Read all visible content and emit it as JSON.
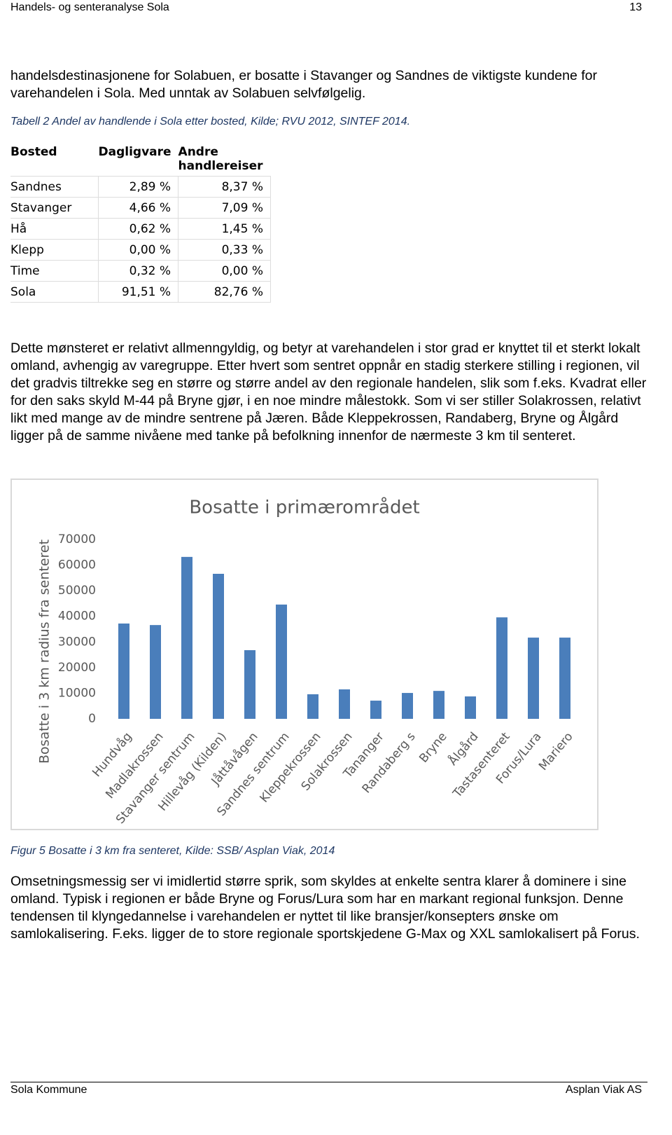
{
  "header": {
    "title": "Handels- og senteranalyse Sola",
    "page": "13"
  },
  "paragraphs": [
    "handelsdestinasjonene for Solabuen, er bosatte i Stavanger og Sandnes de viktigste kundene for varehandelen i Sola. Med unntak av Solabuen selvfølgelig.",
    "Dette mønsteret er relativt allmenngyldig, og betyr at varehandelen i stor grad er knyttet til et sterkt lokalt omland, avhengig av varegruppe. Etter hvert som sentret oppnår en stadig sterkere stilling i regionen, vil det gradvis tiltrekke seg en større og større andel av den regionale handelen, slik som f.eks. Kvadrat eller for den saks skyld M-44 på Bryne gjør, i en noe mindre målestokk. Som vi ser stiller Solakrossen, relativt likt med mange av de mindre sentrene på Jæren. Både Kleppekrossen, Randaberg, Bryne og Ålgård ligger på de samme nivåene med tanke på befolkning innenfor de nærmeste 3 km til senteret.",
    "Omsetningsmessig ser vi imidlertid større sprik, som skyldes at enkelte sentra klarer å dominere i sine omland. Typisk i regionen er både Bryne og Forus/Lura som har en markant regional funksjon. Denne tendensen til klyngedannelse i varehandelen er nyttet til like bransjer/konsepters ønske om samlokalisering. F.eks. ligger de to store regionale sportskjedene G-Max og XXL samlokalisert på Forus."
  ],
  "table": {
    "caption": "Tabell 2 Andel av handlende i Sola etter bosted, Kilde; RVU 2012, SINTEF 2014.",
    "header": [
      "Bosted",
      "Dagligvare",
      "Andre handlereiser"
    ],
    "rows": [
      [
        "Sandnes",
        "2,89 %",
        "8,37 %"
      ],
      [
        "Stavanger",
        "4,66 %",
        "7,09 %"
      ],
      [
        "Hå",
        "0,62 %",
        "1,45 %"
      ],
      [
        "Klepp",
        "0,00 %",
        "0,33 %"
      ],
      [
        "Time",
        "0,32 %",
        "0,00 %"
      ],
      [
        "Sola",
        "91,51 %",
        "82,76 %"
      ]
    ]
  },
  "figure_caption": "Figur 5 Bosatte i 3 km fra senteret, Kilde: SSB/ Asplan Viak, 2014",
  "footer": {
    "left": "Sola Kommune",
    "right": "Asplan Viak AS"
  },
  "chart_data": {
    "type": "bar",
    "title": "Bosatte i primærområdet",
    "y_label": "Bosatte i 3 km radius fra senteret",
    "categories": [
      "Hundvåg",
      "Madlakrossen",
      "Stavanger sentrum",
      "Hillevåg (Kilden)",
      "Jåttåvågen",
      "Sandnes sentrum",
      "Kleppekrossen",
      "Solakrossen",
      "Tananger",
      "Randaberg s",
      "Bryne",
      "Ålgård",
      "Tastasenteret",
      "Forus/Lura",
      "Mariero"
    ],
    "values": [
      37200,
      36600,
      63200,
      56600,
      26800,
      44600,
      9600,
      11500,
      7100,
      10100,
      10900,
      8750,
      39600,
      31700,
      31700
    ],
    "color": "#4a7ebb",
    "ylim": [
      0,
      70000
    ],
    "yticks": [
      0,
      10000,
      20000,
      30000,
      40000,
      50000,
      60000,
      70000
    ],
    "grid": false
  }
}
